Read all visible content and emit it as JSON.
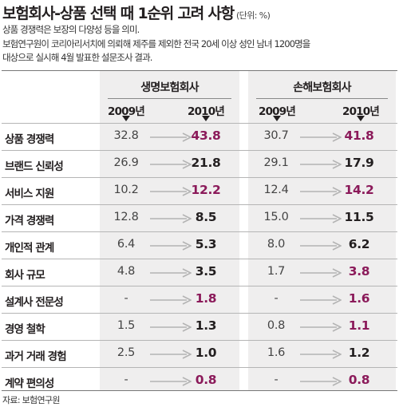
{
  "title": "보험회사-상품 선택 때 1순위 고려 사항",
  "unit": "(단위: %)",
  "notes": [
    "상품 경쟁력은 보장의 다양성 등을 의미.",
    "보험연구원이 코리아리서치에 의뢰해 제주를 제외한 전국 20세 이상 성인 남녀 1200명을",
    "대상으로 실시해 4월 발표한 설문조사 결과."
  ],
  "source": "자료: 보험연구원",
  "colors": {
    "increase": "#8b1a5a",
    "decrease": "#231f20",
    "band": "#efeeee",
    "arrow": "#b4b4b4"
  },
  "chart_data": {
    "type": "table",
    "groups": [
      "생명보험회사",
      "손해보험회사"
    ],
    "years": [
      "2009년",
      "2010년"
    ],
    "rows": [
      {
        "label": "상품 경쟁력",
        "life": [
          "32.8",
          "43.8"
        ],
        "nonlife": [
          "30.7",
          "41.8"
        ]
      },
      {
        "label": "브랜드 신뢰성",
        "life": [
          "26.9",
          "21.8"
        ],
        "nonlife": [
          "29.1",
          "17.9"
        ]
      },
      {
        "label": "서비스 지원",
        "life": [
          "10.2",
          "12.2"
        ],
        "nonlife": [
          "12.4",
          "14.2"
        ]
      },
      {
        "label": "가격 경쟁력",
        "life": [
          "12.8",
          "8.5"
        ],
        "nonlife": [
          "15.0",
          "11.5"
        ]
      },
      {
        "label": "개인적 관계",
        "life": [
          "6.4",
          "5.3"
        ],
        "nonlife": [
          "8.0",
          "6.2"
        ]
      },
      {
        "label": "회사 규모",
        "life": [
          "4.8",
          "3.5"
        ],
        "nonlife": [
          "1.7",
          "3.8"
        ]
      },
      {
        "label": "설계사 전문성",
        "life": [
          "-",
          "1.8"
        ],
        "nonlife": [
          "-",
          "1.6"
        ]
      },
      {
        "label": "경영 철학",
        "life": [
          "1.5",
          "1.3"
        ],
        "nonlife": [
          "0.8",
          "1.1"
        ]
      },
      {
        "label": "과거 거래 경험",
        "life": [
          "2.5",
          "1.0"
        ],
        "nonlife": [
          "1.6",
          "1.2"
        ]
      },
      {
        "label": "계약 편의성",
        "life": [
          "-",
          "0.8"
        ],
        "nonlife": [
          "-",
          "0.8"
        ]
      }
    ]
  }
}
